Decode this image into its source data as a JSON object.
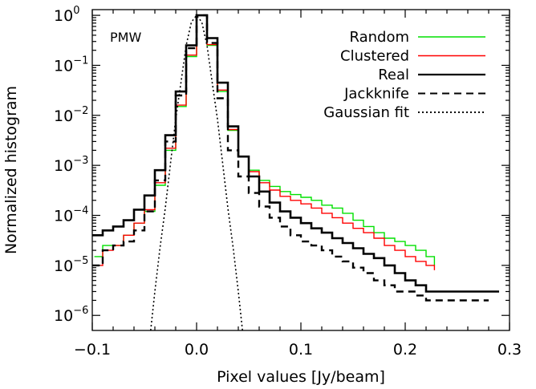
{
  "chart_data": {
    "type": "line",
    "panel_label": "PMW",
    "xlabel": "Pixel values [Jy/beam]",
    "ylabel": "Normalized histogram",
    "xlim": [
      -0.1,
      0.3
    ],
    "ylim": [
      5e-07,
      1.3
    ],
    "yscale": "log",
    "grid": false,
    "legend_position": "top-right",
    "x_ticks": [
      "−0.1",
      "0.0",
      "0.1",
      "0.2",
      "0.3"
    ],
    "x_tick_values": [
      -0.1,
      0.0,
      0.1,
      0.2,
      0.3
    ],
    "y_ticks": [
      {
        "base": "10",
        "exp": "0",
        "value": 1
      },
      {
        "base": "10",
        "exp": "−1",
        "value": 0.1
      },
      {
        "base": "10",
        "exp": "−2",
        "value": 0.01
      },
      {
        "base": "10",
        "exp": "−3",
        "value": 0.001
      },
      {
        "base": "10",
        "exp": "−4",
        "value": 0.0001
      },
      {
        "base": "10",
        "exp": "−5",
        "value": 1e-05
      },
      {
        "base": "10",
        "exp": "−6",
        "value": 1e-06
      }
    ],
    "series": [
      {
        "name": "Random",
        "color": "#00e000",
        "dash": "solid",
        "width": 1.4,
        "step": true,
        "x": [
          -0.098,
          -0.09,
          -0.08,
          -0.07,
          -0.06,
          -0.05,
          -0.04,
          -0.03,
          -0.02,
          -0.01,
          0.0,
          0.01,
          0.02,
          0.03,
          0.04,
          0.05,
          0.06,
          0.07,
          0.08,
          0.09,
          0.1,
          0.11,
          0.12,
          0.13,
          0.14,
          0.15,
          0.16,
          0.17,
          0.18,
          0.19,
          0.2,
          0.21,
          0.22,
          0.228
        ],
        "y": [
          1.5e-05,
          2.5e-05,
          2.5e-05,
          4e-05,
          7e-05,
          0.00012,
          0.0004,
          0.002,
          0.015,
          0.15,
          1.0,
          0.25,
          0.03,
          0.005,
          0.0015,
          0.0008,
          0.0005,
          0.00038,
          0.0003,
          0.00026,
          0.00023,
          0.0002,
          0.00016,
          0.00014,
          0.00011,
          8e-05,
          6e-05,
          4.5e-05,
          3.5e-05,
          3e-05,
          2.5e-05,
          2e-05,
          1.5e-05,
          1e-05
        ]
      },
      {
        "name": "Clustered",
        "color": "#ff0000",
        "dash": "solid",
        "width": 1.4,
        "step": true,
        "x": [
          -0.098,
          -0.09,
          -0.08,
          -0.07,
          -0.06,
          -0.05,
          -0.04,
          -0.03,
          -0.02,
          -0.01,
          0.0,
          0.01,
          0.02,
          0.03,
          0.04,
          0.05,
          0.06,
          0.07,
          0.08,
          0.09,
          0.1,
          0.11,
          0.12,
          0.13,
          0.14,
          0.15,
          0.16,
          0.17,
          0.18,
          0.19,
          0.2,
          0.21,
          0.22,
          0.228
        ],
        "y": [
          1e-05,
          2e-05,
          2.5e-05,
          4e-05,
          7e-05,
          0.00013,
          0.00045,
          0.0022,
          0.016,
          0.16,
          1.0,
          0.26,
          0.032,
          0.0052,
          0.0015,
          0.00075,
          0.00045,
          0.00032,
          0.00024,
          0.0002,
          0.00017,
          0.00014,
          0.00011,
          9e-05,
          7e-05,
          5.5e-05,
          4.5e-05,
          3.5e-05,
          2.5e-05,
          2e-05,
          1.5e-05,
          1.2e-05,
          1e-05,
          8e-06
        ]
      },
      {
        "name": "Real",
        "color": "#000000",
        "dash": "solid",
        "width": 2.6,
        "step": true,
        "x": [
          -0.1,
          -0.09,
          -0.08,
          -0.07,
          -0.06,
          -0.05,
          -0.04,
          -0.03,
          -0.02,
          -0.01,
          0.0,
          0.01,
          0.02,
          0.03,
          0.04,
          0.05,
          0.06,
          0.07,
          0.08,
          0.09,
          0.1,
          0.11,
          0.12,
          0.13,
          0.14,
          0.15,
          0.16,
          0.17,
          0.18,
          0.19,
          0.2,
          0.21,
          0.22,
          0.23,
          0.24,
          0.25,
          0.26,
          0.27,
          0.28,
          0.29
        ],
        "y": [
          4e-05,
          5e-05,
          6e-05,
          8e-05,
          0.00013,
          0.00025,
          0.0008,
          0.004,
          0.03,
          0.25,
          1.0,
          0.35,
          0.045,
          0.006,
          0.0015,
          0.0006,
          0.0003,
          0.00018,
          0.00012,
          9e-05,
          7e-05,
          5.5e-05,
          4.5e-05,
          3.5e-05,
          2.8e-05,
          2.2e-05,
          1.7e-05,
          1.4e-05,
          1e-05,
          7e-06,
          5e-06,
          4e-06,
          3e-06,
          3e-06,
          3e-06,
          3e-06,
          3e-06,
          3e-06,
          3e-06,
          3e-06
        ]
      },
      {
        "name": "Jackknife",
        "color": "#000000",
        "dash": "9,6",
        "width": 2.4,
        "step": true,
        "x": [
          -0.1,
          -0.09,
          -0.08,
          -0.07,
          -0.06,
          -0.05,
          -0.04,
          -0.03,
          -0.02,
          -0.01,
          0.0,
          0.01,
          0.02,
          0.03,
          0.04,
          0.05,
          0.06,
          0.07,
          0.08,
          0.09,
          0.1,
          0.11,
          0.12,
          0.13,
          0.14,
          0.15,
          0.16,
          0.17,
          0.18,
          0.19,
          0.2,
          0.21,
          0.22,
          0.23,
          0.24,
          0.25,
          0.26,
          0.27,
          0.28
        ],
        "y": [
          1e-05,
          2e-05,
          2.5e-05,
          3e-05,
          5e-05,
          0.00012,
          0.0005,
          0.003,
          0.025,
          0.22,
          1.0,
          0.28,
          0.022,
          0.002,
          0.0006,
          0.00028,
          0.00015,
          9e-05,
          6e-05,
          4e-05,
          3e-05,
          2.5e-05,
          2e-05,
          1.5e-05,
          1.2e-05,
          9e-06,
          7e-06,
          5e-06,
          4e-06,
          3e-06,
          3e-06,
          2.5e-06,
          2e-06,
          2e-06,
          2e-06,
          2e-06,
          2e-06,
          2e-06,
          2e-06
        ]
      },
      {
        "name": "Gaussian fit",
        "color": "#000000",
        "dash": "2,3",
        "width": 1.6,
        "step": false,
        "x": [
          -0.044,
          -0.04,
          -0.035,
          -0.03,
          -0.025,
          -0.02,
          -0.015,
          -0.01,
          -0.005,
          0.0,
          0.005,
          0.01,
          0.015,
          0.02,
          0.025,
          0.03,
          0.035,
          0.04,
          0.044
        ],
        "y": [
          5e-07,
          3e-06,
          2.3e-05,
          0.00014,
          0.0011,
          0.0084,
          0.045,
          0.25,
          0.73,
          1.0,
          0.73,
          0.25,
          0.045,
          0.0084,
          0.0011,
          0.00014,
          2.3e-05,
          3e-06,
          5e-07
        ]
      }
    ]
  }
}
